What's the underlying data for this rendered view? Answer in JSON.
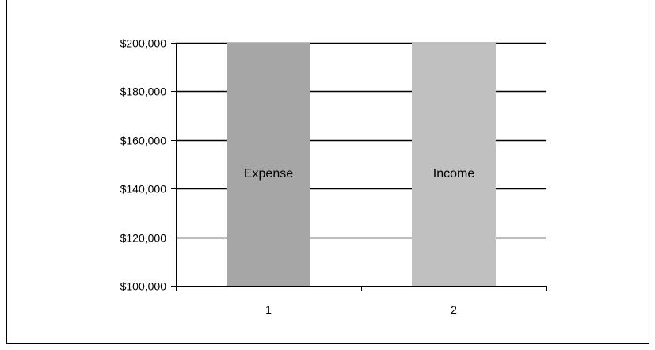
{
  "chart_data": {
    "type": "bar",
    "title": "",
    "xlabel": "",
    "ylabel": "",
    "categories": [
      "1",
      "2"
    ],
    "values": [
      200000,
      200000
    ],
    "bar_labels": [
      "Expense",
      "Income"
    ],
    "bar_colors": [
      "#a6a6a6",
      "#c0c0c0"
    ],
    "ylim": [
      100000,
      200000
    ],
    "y_ticks": [
      100000,
      120000,
      140000,
      160000,
      180000,
      200000
    ],
    "y_tick_labels": [
      "$100,000",
      "$120,000",
      "$140,000",
      "$160,000",
      "$180,000",
      "$200,000"
    ],
    "grid": true,
    "legend": "none"
  }
}
